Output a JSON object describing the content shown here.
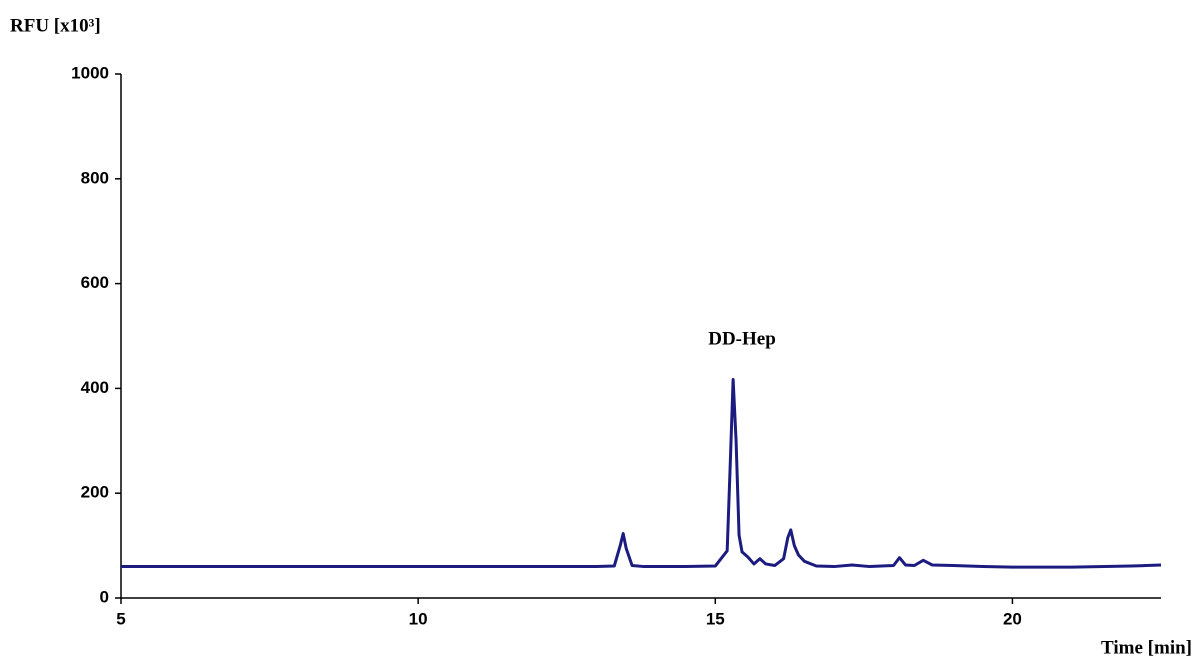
{
  "chart_data": {
    "type": "line",
    "y_label": "RFU [x10³]",
    "x_label": "Time [min]",
    "annotation": "DD-Hep",
    "x": [
      5,
      6,
      7,
      8,
      9,
      10,
      11,
      12,
      13,
      13.3,
      13.4,
      13.45,
      13.5,
      13.6,
      13.8,
      14.5,
      15,
      15.2,
      15.25,
      15.3,
      15.35,
      15.4,
      15.45,
      15.55,
      15.65,
      15.75,
      15.85,
      16,
      16.15,
      16.22,
      16.27,
      16.33,
      16.4,
      16.5,
      16.7,
      17,
      17.3,
      17.6,
      18,
      18.1,
      18.2,
      18.35,
      18.5,
      18.65,
      19,
      19.5,
      20,
      21,
      22,
      22.5
    ],
    "series": [
      {
        "color": "#1c1c80",
        "values": [
          60,
          60,
          60,
          60,
          60,
          60,
          60,
          60,
          60,
          61,
          100,
          123,
          95,
          62,
          60,
          60,
          61,
          90,
          250,
          417,
          300,
          120,
          88,
          78,
          65,
          75,
          65,
          62,
          75,
          115,
          130,
          100,
          82,
          70,
          61,
          60,
          63,
          60,
          62,
          77,
          63,
          62,
          72,
          63,
          62,
          60,
          59,
          59,
          61,
          63
        ]
      }
    ],
    "xlim": [
      5,
      22.5
    ],
    "xticks": [
      5,
      10,
      15,
      20
    ],
    "ylim": [
      0,
      1000
    ],
    "yticks": [
      0,
      200,
      400,
      600,
      800,
      1000
    ],
    "grid": false
  }
}
